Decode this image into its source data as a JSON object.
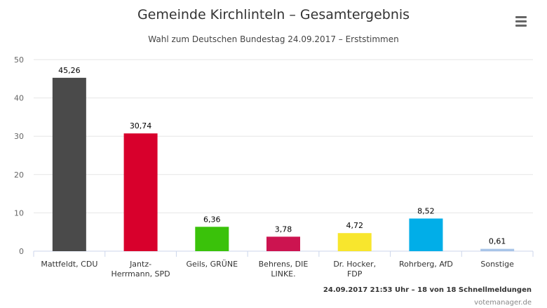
{
  "chart_data": {
    "type": "bar",
    "title": "Gemeinde Kirchlinteln – Gesamtergebnis",
    "subtitle": "Wahl zum Deutschen Bundestag 24.09.2017 – Erststimmen",
    "categories": [
      [
        "Mattfeldt, CDU"
      ],
      [
        "Jantz-",
        "Herrmann, SPD"
      ],
      [
        "Geils, GRÜNE"
      ],
      [
        "Behrens, DIE",
        "LINKE."
      ],
      [
        "Dr. Hocker,",
        "FDP"
      ],
      [
        "Rohrberg, AfD"
      ],
      [
        "Sonstige"
      ]
    ],
    "values": [
      45.26,
      30.74,
      6.36,
      3.78,
      4.72,
      8.52,
      0.61
    ],
    "data_labels": [
      "45,26",
      "30,74",
      "6,36",
      "3,78",
      "4,72",
      "8,52",
      "0,61"
    ],
    "colors": [
      "#4a4a4a",
      "#d8002c",
      "#3ac20a",
      "#cc1450",
      "#f8e62d",
      "#01aee8",
      "#a8c4e8"
    ],
    "ylim": [
      0,
      50
    ],
    "yticks": [
      0,
      10,
      20,
      30,
      40,
      50
    ],
    "grid": true,
    "legend": "none"
  },
  "menu": {
    "icon": "hamburger-menu-icon"
  },
  "credits": {
    "line": "24.09.2017 21:53 Uhr – 18 von 18 Schnellmeldungen",
    "source": "votemanager.de"
  }
}
